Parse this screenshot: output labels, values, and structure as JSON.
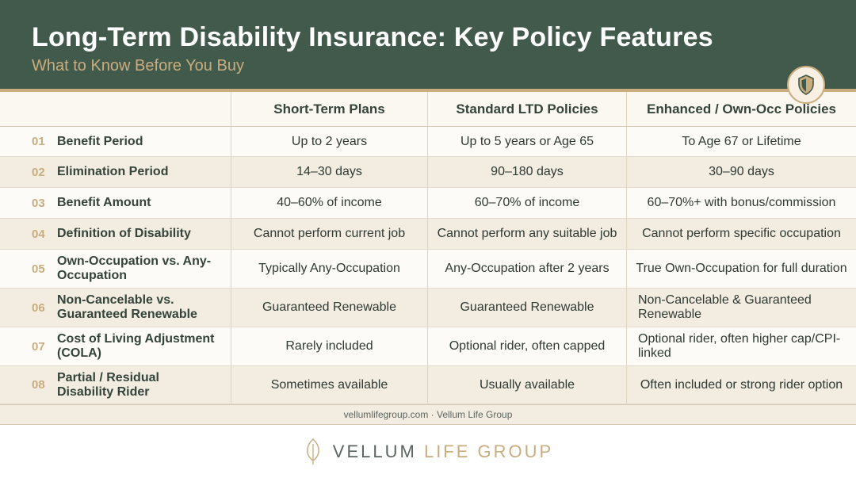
{
  "header": {
    "title": "Long-Term Disability Insurance: Key Policy Features",
    "subtitle": "What to Know Before You Buy",
    "badge_icon": "shield-icon"
  },
  "table": {
    "columns": [
      "",
      "Short-Term Plans",
      "Standard LTD Policies",
      "Enhanced / Own-Occ Policies"
    ],
    "rows": [
      {
        "num": "01",
        "feature": "Benefit Period",
        "short_term": "Up to 2 years",
        "standard": "Up to 5 years or Age 65",
        "enhanced": "To Age 67 or Lifetime"
      },
      {
        "num": "02",
        "feature": "Elimination Period",
        "short_term": "14–30 days",
        "standard": "90–180 days",
        "enhanced": "30–90 days"
      },
      {
        "num": "03",
        "feature": "Benefit Amount",
        "short_term": "40–60% of income",
        "standard": "60–70% of income",
        "enhanced": "60–70%+ with bonus/commission"
      },
      {
        "num": "04",
        "feature": "Definition of Disability",
        "short_term": "Cannot perform current job",
        "standard": "Cannot perform any suitable job",
        "enhanced": "Cannot perform specific occupation"
      },
      {
        "num": "05",
        "feature": "Own-Occupation vs. Any-Occupation",
        "short_term": "Typically Any-Occupation",
        "standard": "Any-Occupation after 2 years",
        "enhanced": "True Own-Occupation for full duration"
      },
      {
        "num": "06",
        "feature": "Non-Cancelable vs. Guaranteed Renewable",
        "short_term": "Guaranteed Renewable",
        "standard": "Guaranteed Renewable",
        "enhanced": "Non-Cancelable & Guaranteed Renewable"
      },
      {
        "num": "07",
        "feature": "Cost of Living Adjustment (COLA)",
        "short_term": "Rarely included",
        "standard": "Optional rider, often capped",
        "enhanced": "Optional rider, often higher cap/CPI-linked"
      },
      {
        "num": "08",
        "feature": "Partial / Residual Disability Rider",
        "short_term": "Sometimes available",
        "standard": "Usually available",
        "enhanced": "Often included or strong rider option"
      }
    ]
  },
  "footer": {
    "source": "vellumlifegroup.com · Vellum Life Group",
    "brand_primary": "VELLUM",
    "brand_secondary": "LIFE GROUP",
    "logo_icon": "leaf-icon"
  },
  "colors": {
    "header_bg": "#425a4b",
    "accent_gold": "#c9ad7f",
    "row_alt": "#f2ece1"
  }
}
